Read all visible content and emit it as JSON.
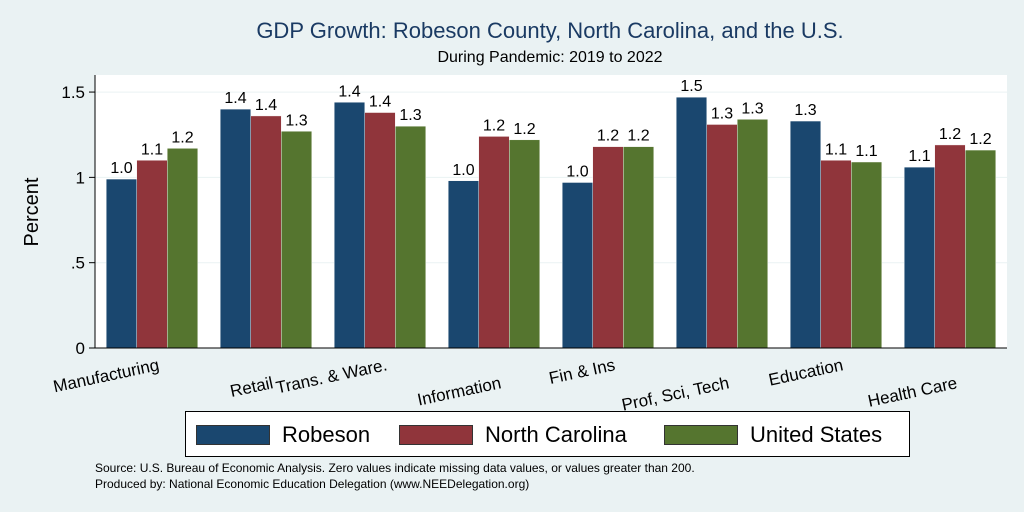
{
  "chart_data": {
    "type": "bar",
    "title": "GDP Growth: Robeson County, North Carolina, and the U.S.",
    "subtitle": "During Pandemic: 2019 to 2022",
    "xlabel": "",
    "ylabel": "Percent",
    "ylim": [
      0,
      1.6
    ],
    "yticks": [
      0,
      0.5,
      1,
      1.5
    ],
    "ytick_labels": [
      "0",
      ".5",
      "1",
      "1.5"
    ],
    "grid": true,
    "legend_position": "bottom",
    "categories": [
      "Manufacturing",
      "Retail",
      "Trans. & Ware.",
      "Information",
      "Fin & Ins",
      "Prof, Sci, Tech",
      "Education",
      "Health Care"
    ],
    "series": [
      {
        "name": "Robeson",
        "color": "#1a476f",
        "values": [
          0.99,
          1.4,
          1.44,
          0.98,
          0.97,
          1.47,
          1.33,
          1.06
        ],
        "labels": [
          "1.0",
          "1.4",
          "1.4",
          "1.0",
          "1.0",
          "1.5",
          "1.3",
          "1.1"
        ]
      },
      {
        "name": "North Carolina",
        "color": "#90353b",
        "values": [
          1.1,
          1.36,
          1.38,
          1.24,
          1.18,
          1.31,
          1.1,
          1.19
        ],
        "labels": [
          "1.1",
          "1.4",
          "1.4",
          "1.2",
          "1.2",
          "1.3",
          "1.1",
          "1.2"
        ]
      },
      {
        "name": "United States",
        "color": "#55752f",
        "values": [
          1.17,
          1.27,
          1.3,
          1.22,
          1.18,
          1.34,
          1.09,
          1.16
        ],
        "labels": [
          "1.2",
          "1.3",
          "1.3",
          "1.2",
          "1.2",
          "1.3",
          "1.1",
          "1.2"
        ]
      }
    ]
  },
  "source_line": "Source: U.S. Bureau of Economic Analysis. Zero values indicate missing data values, or values greater than 200.",
  "produced_line": "Produced by: National Economic Education Delegation (www.NEEDelegation.org)"
}
